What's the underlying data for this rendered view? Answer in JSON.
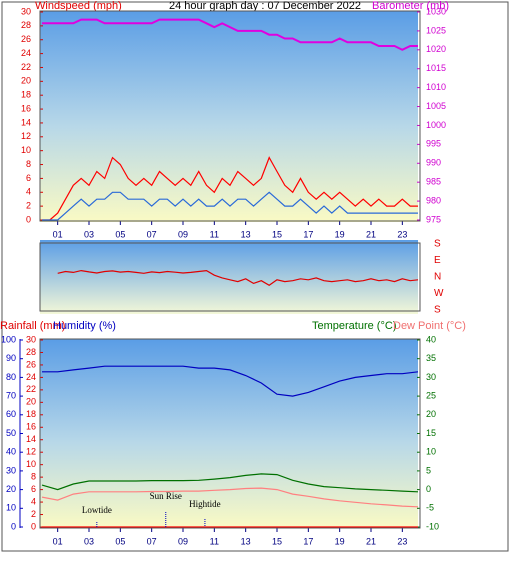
{
  "chart_data": [
    {
      "type": "line",
      "title": "24 hour graph day : 07 December 2022",
      "ylabel": "Windspeed (mph)",
      "y2label": "Barometer (mb)",
      "xlim": [
        0,
        24
      ],
      "xticks": [
        {
          "value": 1,
          "label": "01"
        },
        {
          "value": 3,
          "label": "03"
        },
        {
          "value": 5,
          "label": "05"
        },
        {
          "value": 7,
          "label": "07"
        },
        {
          "value": 9,
          "label": "09"
        },
        11,
        13,
        15,
        17,
        19,
        21,
        23
      ],
      "ylim": [
        0,
        30
      ],
      "yticks": [
        0,
        2,
        4,
        6,
        8,
        10,
        12,
        14,
        16,
        18,
        20,
        22,
        24,
        26,
        28,
        30
      ],
      "y2lim": [
        975,
        1030
      ],
      "y2ticks": [
        975,
        980,
        985,
        990,
        995,
        1000,
        1005,
        1010,
        1015,
        1020,
        1025,
        1030
      ],
      "x": [
        0,
        0.5,
        1,
        1.5,
        2,
        2.5,
        3,
        3.5,
        4,
        4.5,
        5,
        5.5,
        6,
        6.5,
        7,
        7.5,
        8,
        8.5,
        9,
        9.5,
        10,
        10.5,
        11,
        11.5,
        12,
        12.5,
        13,
        13.5,
        14,
        14.5,
        15,
        15.5,
        16,
        16.5,
        17,
        17.5,
        18,
        18.5,
        19,
        19.5,
        20,
        20.5,
        21,
        21.5,
        22,
        22.5,
        23,
        23.5,
        24
      ],
      "series": [
        {
          "color": "#ff0000",
          "values": [
            0,
            0,
            1,
            3,
            5,
            6,
            5,
            7,
            6,
            9,
            8,
            6,
            5,
            6,
            5,
            7,
            6,
            5,
            6,
            5,
            7,
            5,
            4,
            6,
            5,
            7,
            6,
            5,
            6,
            9,
            7,
            5,
            4,
            6,
            4,
            3,
            4,
            3,
            4,
            3,
            2,
            3,
            2,
            3,
            2,
            2,
            3,
            2,
            2
          ]
        },
        {
          "color": "#2a6ad8",
          "values": [
            0,
            0,
            0,
            1,
            2,
            3,
            2,
            3,
            3,
            4,
            4,
            3,
            3,
            3,
            2,
            3,
            3,
            2,
            3,
            2,
            3,
            2,
            2,
            3,
            2,
            3,
            3,
            2,
            3,
            4,
            3,
            2,
            2,
            3,
            2,
            1,
            2,
            1,
            2,
            1,
            1,
            1,
            1,
            1,
            1,
            1,
            1,
            1,
            1
          ]
        },
        {
          "color": "#e000e0",
          "axis": "y2",
          "values": [
            1027,
            1027,
            1027,
            1027,
            1027,
            1028,
            1028,
            1028,
            1027,
            1027,
            1027,
            1027,
            1027,
            1027,
            1027,
            1028,
            1028,
            1028,
            1028,
            1028,
            1028,
            1027,
            1026,
            1027,
            1026,
            1025,
            1025,
            1025,
            1025,
            1024,
            1024,
            1023,
            1023,
            1022,
            1022,
            1022,
            1022,
            1022,
            1023,
            1022,
            1022,
            1022,
            1022,
            1021,
            1021,
            1021,
            1020,
            1021,
            1021
          ]
        }
      ]
    },
    {
      "type": "line",
      "xlim": [
        0,
        24
      ],
      "ylim": [
        -180,
        180
      ],
      "yticks": [
        {
          "value": 180,
          "label": "S"
        },
        {
          "value": 90,
          "label": "E"
        },
        {
          "value": 0,
          "label": "N"
        },
        {
          "value": -90,
          "label": "W"
        },
        {
          "value": -180,
          "label": "S"
        }
      ],
      "x": [
        0,
        0.5,
        1,
        1.5,
        2,
        2.5,
        3,
        3.5,
        4,
        4.5,
        5,
        5.5,
        6,
        6.5,
        7,
        7.5,
        8,
        8.5,
        9,
        9.5,
        10,
        10.5,
        11,
        11.5,
        12,
        12.5,
        13,
        13.5,
        14,
        14.5,
        15,
        15.5,
        16,
        16.5,
        17,
        17.5,
        18,
        18.5,
        19,
        19.5,
        20,
        20.5,
        21,
        21.5,
        22,
        22.5,
        23,
        23.5,
        24
      ],
      "series": [
        {
          "color": "#e00000",
          "values": [
            null,
            null,
            20,
            30,
            25,
            35,
            28,
            22,
            30,
            33,
            27,
            30,
            25,
            20,
            28,
            24,
            30,
            26,
            22,
            25,
            30,
            35,
            10,
            -5,
            -15,
            -25,
            -10,
            -35,
            -20,
            -45,
            -15,
            -25,
            -20,
            -10,
            -15,
            -5,
            -20,
            -25,
            -20,
            -15,
            -25,
            -20,
            -10,
            -20,
            -15,
            -25,
            -10,
            -20,
            -15
          ]
        }
      ]
    },
    {
      "type": "line",
      "ylabel": "Rainfall (mm)",
      "y3label": "Humidity (%)",
      "xlim": [
        0,
        24
      ],
      "xticks": [
        {
          "value": 1,
          "label": "01"
        },
        {
          "value": 3,
          "label": "03"
        },
        {
          "value": 5,
          "label": "05"
        },
        {
          "value": 7,
          "label": "07"
        },
        {
          "value": 9,
          "label": "09"
        },
        11,
        13,
        15,
        17,
        19,
        21,
        23
      ],
      "ylim": [
        0,
        30
      ],
      "yticks": [
        0,
        2,
        4,
        6,
        8,
        10,
        12,
        14,
        16,
        18,
        20,
        22,
        24,
        26,
        28,
        30
      ],
      "y3lim": [
        0,
        100
      ],
      "y3ticks": [
        0,
        10,
        20,
        30,
        40,
        50,
        60,
        70,
        80,
        90,
        100
      ],
      "y2lim": [
        -10,
        40
      ],
      "y2ticks": [
        -10,
        -5,
        0,
        5,
        10,
        15,
        20,
        25,
        30,
        35,
        40
      ],
      "x": [
        0,
        1,
        2,
        3,
        4,
        5,
        6,
        7,
        8,
        9,
        10,
        11,
        12,
        13,
        14,
        15,
        16,
        17,
        18,
        19,
        20,
        21,
        22,
        23,
        24
      ],
      "series": [
        {
          "color": "#0000c0",
          "axis": "y3",
          "values": [
            83,
            83,
            84,
            85,
            86,
            86,
            86,
            86,
            86,
            86,
            85,
            85,
            84,
            81,
            77,
            71,
            70,
            72,
            75,
            78,
            80,
            81,
            82,
            82,
            83
          ]
        },
        {
          "name": "Temperature (°C)",
          "color": "#007000",
          "axis": "y2",
          "values": [
            1.2,
            0,
            1.5,
            2.3,
            2.3,
            2.3,
            2.3,
            2.4,
            2.4,
            2.4,
            2.5,
            2.8,
            3.2,
            3.8,
            4.2,
            4.0,
            2.5,
            1.5,
            0.8,
            0.5,
            0.2,
            0,
            -0.2,
            -0.4,
            -0.6
          ]
        },
        {
          "name": "Dew Point (°C)",
          "color": "#ff8080",
          "axis": "y2",
          "values": [
            -2,
            -2.8,
            -1.2,
            -0.6,
            -0.6,
            -0.6,
            -0.6,
            -0.5,
            -0.5,
            -0.4,
            -0.4,
            -0.2,
            0,
            0.3,
            0.4,
            0,
            -1.2,
            -1.8,
            -2.5,
            -3,
            -3.4,
            -3.8,
            -4.1,
            -4.4,
            -4.6
          ]
        },
        {
          "color": "#ff0000",
          "values": [
            0,
            0,
            0,
            0,
            0,
            0,
            0,
            0,
            0,
            0,
            0,
            0,
            0,
            0,
            0,
            0,
            0,
            0,
            0,
            0,
            0,
            0,
            0,
            0,
            0
          ]
        }
      ],
      "annotations": [
        {
          "text": "Lowtide",
          "x": 3.5
        },
        {
          "text": "Sun Rise",
          "x": 7.9
        },
        {
          "text": "Hightide",
          "x": 10.4
        }
      ]
    }
  ]
}
